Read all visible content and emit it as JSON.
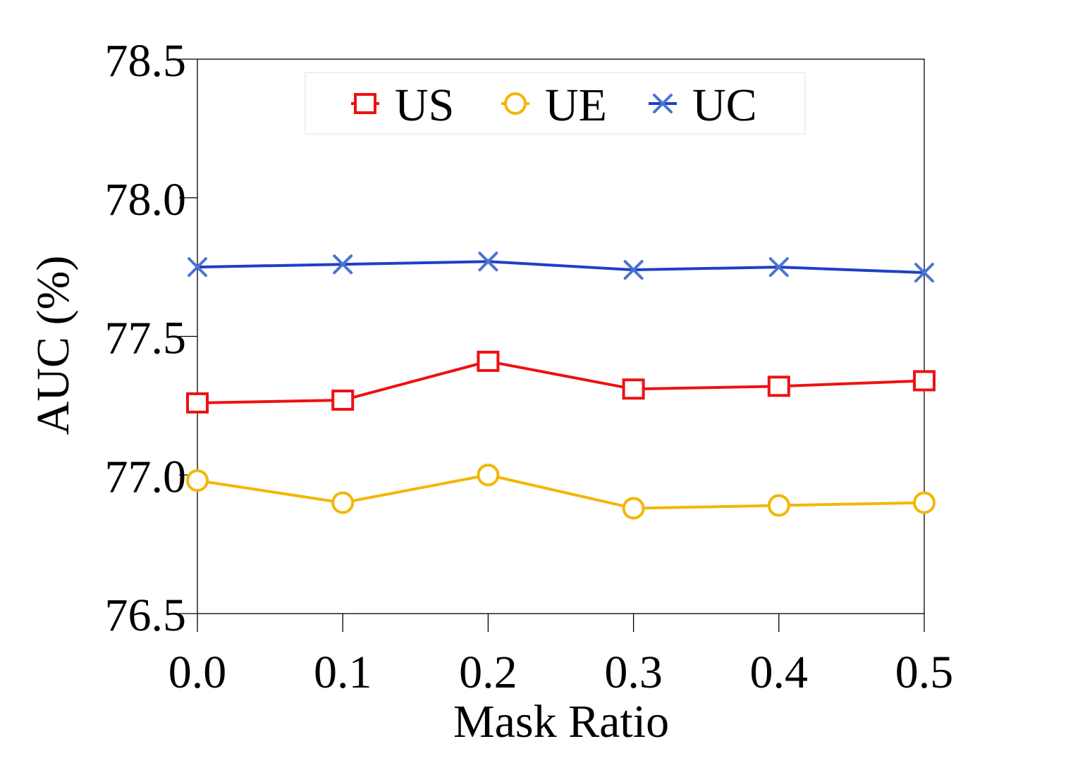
{
  "chart_data": {
    "type": "line",
    "title": "",
    "xlabel": "Mask Ratio",
    "ylabel": "AUC (%)",
    "x": [
      0.0,
      0.1,
      0.2,
      0.3,
      0.4,
      0.5
    ],
    "x_tick_labels": [
      "0.0",
      "0.1",
      "0.2",
      "0.3",
      "0.4",
      "0.5"
    ],
    "y_ticks": [
      76.5,
      77.0,
      77.5,
      78.0,
      78.5
    ],
    "y_tick_labels": [
      "76.5",
      "77.0",
      "77.5",
      "78.0",
      "78.5"
    ],
    "ylim": [
      76.5,
      78.5
    ],
    "xlim": [
      0.0,
      0.5
    ],
    "grid": false,
    "legend_position": "top-center",
    "series": [
      {
        "name": "US",
        "marker": "square",
        "color": "#ee1111",
        "values": [
          77.26,
          77.27,
          77.41,
          77.31,
          77.32,
          77.34
        ]
      },
      {
        "name": "UE",
        "marker": "circle",
        "color": "#f2b705",
        "values": [
          76.98,
          76.9,
          77.0,
          76.88,
          76.89,
          76.9
        ]
      },
      {
        "name": "UC",
        "marker": "x",
        "color": "#1f3fc6",
        "marker_color": "#4a73d4",
        "values": [
          77.75,
          77.76,
          77.77,
          77.74,
          77.75,
          77.73
        ]
      }
    ]
  }
}
